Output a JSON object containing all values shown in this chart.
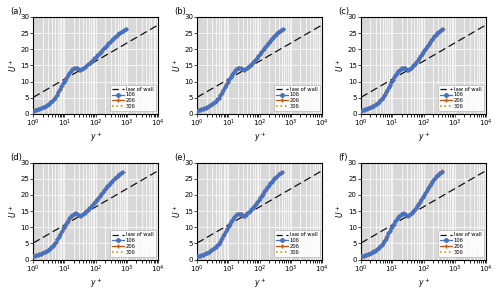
{
  "n_rows": 2,
  "n_cols": 3,
  "subplot_labels": [
    "(a)",
    "(b)",
    "(c)",
    "(d)",
    "(e)",
    "(f)"
  ],
  "xlabel": "$y^+$",
  "ylabel": "$U^+$",
  "xlim": [
    1,
    10000
  ],
  "ylim": [
    0,
    30
  ],
  "yticks": [
    0,
    5,
    10,
    15,
    20,
    25,
    30
  ],
  "law_of_wall_color": "#111111",
  "colors_10d": "#4472c4",
  "colors_20d": "#c0571a",
  "colors_30d": "#cc9900",
  "legend_labels": [
    "law of wall",
    "10δ",
    "20δ",
    "30δ"
  ],
  "background_color": "#d8d8d8",
  "grid_color": "#ffffff",
  "figsize": [
    5.0,
    2.97
  ],
  "dpi": 100,
  "subplot_profiles": [
    {
      "x_max": 900,
      "u_max": 26.3,
      "label": "(a)"
    },
    {
      "x_max": 550,
      "u_max": 26.3,
      "label": "(b)"
    },
    {
      "x_max": 400,
      "u_max": 26.3,
      "label": "(c)"
    },
    {
      "x_max": 700,
      "u_max": 27.0,
      "label": "(d)"
    },
    {
      "x_max": 500,
      "u_max": 27.0,
      "label": "(e)"
    },
    {
      "x_max": 380,
      "u_max": 27.2,
      "label": "(f)"
    }
  ]
}
